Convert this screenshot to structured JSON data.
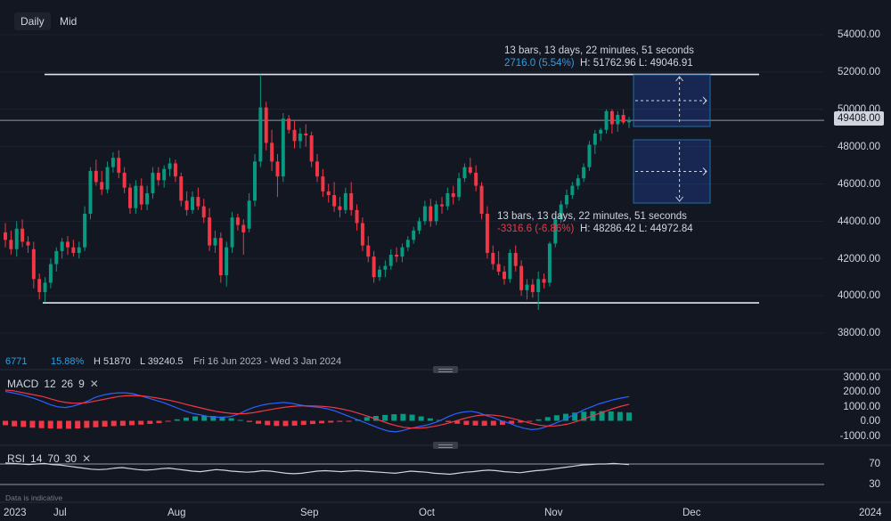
{
  "toolbar": {
    "daily_label": "Daily",
    "mid_label": "Mid"
  },
  "stats_row": {
    "value1": "6771",
    "change_pct": "15.88%",
    "high": "H 51870",
    "low": "L 39240.5",
    "range": "Fri 16 Jun 2023 - Wed 3 Jan 2024"
  },
  "tooltip_top": {
    "line1": "13 bars, 13 days, 22 minutes, 51 seconds",
    "change": "2716.0 (5.54%)",
    "hl": "H: 51762.96 L: 49046.91"
  },
  "tooltip_bottom": {
    "line1": "13 bars, 13 days, 22 minutes, 51 seconds",
    "change": "-3316.6 (-6.86%)",
    "hl": "H: 48286.42 L: 44972.84"
  },
  "macd": {
    "name": "MACD",
    "p1": "12",
    "p2": "26",
    "p3": "9"
  },
  "rsi": {
    "name": "RSI",
    "p1": "14",
    "p2": "70",
    "p3": "30"
  },
  "last_price": "49408.00",
  "note": "Data is indicative",
  "price_axis": [
    "54000.00",
    "52000.00",
    "50000.00",
    "48000.00",
    "46000.00",
    "44000.00",
    "42000.00",
    "40000.00",
    "38000.00"
  ],
  "macd_axis": [
    "3000.00",
    "2000.00",
    "1000.00",
    "0.00",
    "-1000.00"
  ],
  "rsi_axis": [
    "70",
    "30"
  ],
  "time_axis": [
    "2023",
    "Jul",
    "Aug",
    "Sep",
    "Oct",
    "Nov",
    "Dec",
    "2024"
  ],
  "colors": {
    "up": "#089981",
    "down": "#f23645",
    "bg": "#131722",
    "macd": "#2962ff",
    "signal": "#f23645",
    "rsi": "#d1d4dc",
    "box": "#1e6fa8"
  },
  "chart_data": {
    "type": "candlestick",
    "instrument_levels": {
      "resistance": 51870,
      "support": 39620,
      "last": 49408
    },
    "y_range": [
      37000,
      55000
    ],
    "candles": [
      [
        43400,
        43900,
        42600,
        43000
      ],
      [
        43000,
        43500,
        42200,
        42500
      ],
      [
        42500,
        44000,
        42100,
        43600
      ],
      [
        43600,
        44100,
        42600,
        42900
      ],
      [
        42900,
        43200,
        42300,
        42700
      ],
      [
        42500,
        42900,
        40400,
        40900
      ],
      [
        40900,
        41200,
        39800,
        40200
      ],
      [
        40200,
        41000,
        39650,
        40700
      ],
      [
        40700,
        42000,
        40400,
        41700
      ],
      [
        41700,
        42600,
        41300,
        42400
      ],
      [
        42400,
        43100,
        42000,
        42900
      ],
      [
        42900,
        43200,
        42200,
        42600
      ],
      [
        42600,
        43000,
        42100,
        42300
      ],
      [
        42300,
        42900,
        42000,
        42600
      ],
      [
        42600,
        44800,
        42400,
        44400
      ],
      [
        44400,
        46900,
        44100,
        46700
      ],
      [
        46700,
        47300,
        45900,
        46100
      ],
      [
        46100,
        46700,
        45400,
        45700
      ],
      [
        45700,
        47200,
        45500,
        46900
      ],
      [
        46900,
        47700,
        46600,
        47400
      ],
      [
        47400,
        47800,
        46300,
        46600
      ],
      [
        46600,
        46900,
        45500,
        45800
      ],
      [
        45800,
        46000,
        44400,
        44700
      ],
      [
        44700,
        46200,
        44400,
        45900
      ],
      [
        45900,
        46300,
        44600,
        44900
      ],
      [
        44900,
        45900,
        44600,
        45500
      ],
      [
        45500,
        46900,
        45200,
        46600
      ],
      [
        46600,
        46900,
        45900,
        46200
      ],
      [
        46200,
        47000,
        45800,
        46800
      ],
      [
        46800,
        47400,
        46400,
        47100
      ],
      [
        47100,
        47300,
        46100,
        46400
      ],
      [
        46400,
        46600,
        44800,
        45100
      ],
      [
        45100,
        45600,
        44300,
        44600
      ],
      [
        44600,
        45600,
        44400,
        45300
      ],
      [
        45300,
        45800,
        44600,
        44800
      ],
      [
        44800,
        45200,
        43900,
        44200
      ],
      [
        44200,
        44700,
        42400,
        42700
      ],
      [
        42700,
        43500,
        42300,
        43100
      ],
      [
        43100,
        43400,
        40700,
        41100
      ],
      [
        41100,
        42900,
        40500,
        42600
      ],
      [
        42600,
        44500,
        42300,
        44200
      ],
      [
        44200,
        44400,
        43500,
        43800
      ],
      [
        43800,
        44100,
        42200,
        43400
      ],
      [
        43600,
        45500,
        43400,
        45100
      ],
      [
        45100,
        47600,
        44800,
        47200
      ],
      [
        47200,
        51870,
        46900,
        50100
      ],
      [
        50100,
        50400,
        47800,
        48200
      ],
      [
        48200,
        48900,
        46700,
        47200
      ],
      [
        47200,
        47600,
        45300,
        46400
      ],
      [
        46400,
        49800,
        46100,
        49500
      ],
      [
        49500,
        49700,
        48700,
        48900
      ],
      [
        48900,
        49400,
        47900,
        48300
      ],
      [
        48300,
        49000,
        47900,
        48700
      ],
      [
        48700,
        49200,
        48000,
        48600
      ],
      [
        48600,
        48800,
        46900,
        47200
      ],
      [
        47200,
        47600,
        46100,
        46400
      ],
      [
        46400,
        46800,
        45300,
        45600
      ],
      [
        45600,
        46000,
        45000,
        45400
      ],
      [
        45400,
        46100,
        44500,
        44800
      ],
      [
        44800,
        45300,
        44200,
        44600
      ],
      [
        44600,
        45800,
        44400,
        45500
      ],
      [
        45500,
        46100,
        44300,
        44600
      ],
      [
        44600,
        44900,
        43500,
        43900
      ],
      [
        43900,
        44200,
        42400,
        42700
      ],
      [
        42700,
        43200,
        41800,
        42100
      ],
      [
        42100,
        42400,
        40700,
        41000
      ],
      [
        41000,
        41600,
        40800,
        41400
      ],
      [
        41400,
        41900,
        41000,
        41600
      ],
      [
        41600,
        42500,
        41400,
        42200
      ],
      [
        42200,
        42600,
        41800,
        42100
      ],
      [
        42100,
        42800,
        41800,
        42600
      ],
      [
        42600,
        43200,
        42400,
        43000
      ],
      [
        43000,
        43700,
        42800,
        43500
      ],
      [
        43500,
        44200,
        43300,
        44000
      ],
      [
        44000,
        45100,
        43800,
        44800
      ],
      [
        44800,
        45200,
        43700,
        44000
      ],
      [
        44000,
        45100,
        43800,
        44900
      ],
      [
        44900,
        45300,
        44400,
        44800
      ],
      [
        44800,
        45800,
        44600,
        45500
      ],
      [
        45500,
        45900,
        44900,
        45300
      ],
      [
        45300,
        46600,
        45100,
        46300
      ],
      [
        46300,
        47100,
        46100,
        46900
      ],
      [
        46900,
        47400,
        46500,
        46600
      ],
      [
        46600,
        47000,
        45600,
        45900
      ],
      [
        45900,
        46100,
        44100,
        44400
      ],
      [
        44400,
        44800,
        42000,
        42300
      ],
      [
        42300,
        42700,
        41400,
        41700
      ],
      [
        41700,
        42400,
        41100,
        41300
      ],
      [
        41300,
        41600,
        40600,
        40900
      ],
      [
        40900,
        42500,
        40700,
        42300
      ],
      [
        42300,
        42700,
        41300,
        41600
      ],
      [
        41600,
        41900,
        40000,
        40300
      ],
      [
        40300,
        40900,
        39800,
        40600
      ],
      [
        40600,
        40900,
        39900,
        40200
      ],
      [
        40200,
        41300,
        39240.5,
        40900
      ],
      [
        40900,
        41200,
        40400,
        40700
      ],
      [
        40700,
        42900,
        40500,
        42800
      ],
      [
        42800,
        44300,
        42600,
        44100
      ],
      [
        44100,
        45100,
        43900,
        44900
      ],
      [
        44900,
        45700,
        44700,
        45400
      ],
      [
        45400,
        46100,
        45200,
        45900
      ],
      [
        45900,
        46500,
        45700,
        46300
      ],
      [
        46300,
        47100,
        46100,
        46900
      ],
      [
        46900,
        48300,
        46700,
        48100
      ],
      [
        48100,
        48900,
        47600,
        48700
      ],
      [
        48700,
        49000,
        48300,
        48900
      ],
      [
        48900,
        50000,
        48700,
        49900
      ],
      [
        49900,
        50000,
        48700,
        49200
      ],
      [
        49200,
        49900,
        48800,
        49700
      ],
      [
        49700,
        50000,
        49200,
        49300
      ],
      [
        49300,
        49600,
        49000,
        49408
      ]
    ],
    "macd_values": [
      2000,
      1900,
      1800,
      1650,
      1500,
      1300,
      1100,
      950,
      900,
      1000,
      1150,
      1350,
      1600,
      1750,
      1850,
      1900,
      1900,
      1850,
      1700,
      1550,
      1400,
      1250,
      1050,
      850,
      650,
      500,
      400,
      300,
      250,
      250,
      300,
      450,
      700,
      900,
      1050,
      1150,
      1200,
      1250,
      1200,
      1100,
      1000,
      950,
      900,
      800,
      650,
      450,
      250,
      50,
      -150,
      -350,
      -550,
      -700,
      -750,
      -650,
      -500,
      -400,
      -300,
      -150,
      50,
      300,
      500,
      600,
      650,
      550,
      350,
      200,
      0,
      -150,
      -350,
      -500,
      -600,
      -550,
      -400,
      -200,
      0,
      250,
      500,
      750,
      950,
      1150,
      1300,
      1450,
      1550,
      1650
    ],
    "signal_values": [
      2100,
      2050,
      1950,
      1850,
      1750,
      1650,
      1500,
      1350,
      1250,
      1200,
      1200,
      1250,
      1350,
      1450,
      1550,
      1650,
      1700,
      1720,
      1700,
      1650,
      1570,
      1480,
      1380,
      1260,
      1130,
      1000,
      880,
      760,
      650,
      570,
      510,
      480,
      490,
      550,
      640,
      740,
      830,
      910,
      970,
      1010,
      1020,
      1010,
      990,
      950,
      880,
      780,
      660,
      510,
      350,
      180,
      0,
      -180,
      -330,
      -440,
      -490,
      -500,
      -460,
      -380,
      -280,
      -150,
      0,
      150,
      280,
      370,
      400,
      380,
      320,
      220,
      100,
      -40,
      -180,
      -290,
      -350,
      -350,
      -300,
      -200,
      -50,
      130,
      320,
      500,
      680,
      850,
      1000,
      1130
    ],
    "macd_hist_values": [
      -300,
      -380,
      -420,
      -470,
      -500,
      -520,
      -540,
      -540,
      -520,
      -480,
      -440,
      -400,
      -360,
      -340,
      -300,
      -260,
      -210,
      -150,
      -60,
      100,
      220,
      300,
      350,
      330,
      270,
      180,
      60,
      -80,
      -200,
      -300,
      -350,
      -360,
      -330,
      -280,
      -220,
      -170,
      -120,
      -70,
      -20,
      80,
      250,
      330,
      400,
      450,
      470,
      420,
      300,
      170,
      60,
      -80,
      -200,
      -280,
      -320,
      -340,
      -320,
      -270,
      -200,
      -120,
      -40,
      100,
      250,
      380,
      480,
      560,
      620,
      650,
      660,
      640,
      600,
      560
    ],
    "rsi_values": [
      72,
      71,
      70,
      69,
      70,
      71,
      69,
      68,
      66,
      64,
      62,
      60,
      59,
      60,
      62,
      63,
      61,
      59,
      58,
      59,
      61,
      62,
      60,
      58,
      56,
      55,
      57,
      59,
      58,
      56,
      55,
      54,
      55,
      57,
      56,
      54,
      52,
      51,
      52,
      54,
      56,
      57,
      56,
      55,
      56,
      57,
      56,
      55,
      54,
      53,
      52,
      54,
      56,
      55,
      54,
      52,
      51,
      50,
      52,
      54,
      55,
      57,
      58,
      57,
      55,
      54,
      53,
      55,
      57,
      58,
      60,
      62,
      64,
      66,
      68,
      69,
      70,
      70,
      71,
      70,
      69
    ]
  }
}
